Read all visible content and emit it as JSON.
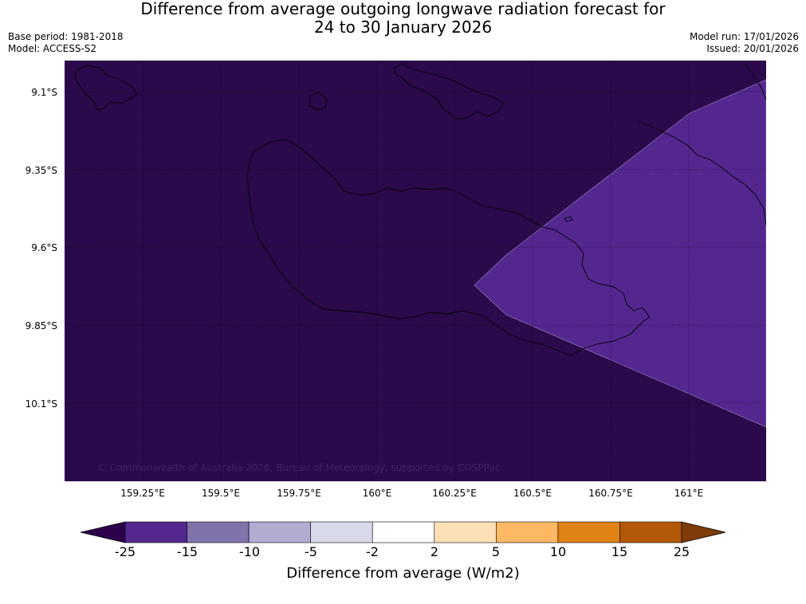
{
  "title": {
    "line1": "Difference from average outgoing longwave radiation forecast for",
    "line2": "24 to 30 January 2026"
  },
  "meta": {
    "base_period": "Base period: 1981-2018",
    "model": "Model: ACCESS-S2",
    "model_run": "Model run: 17/01/2026",
    "issued": "Issued: 20/01/2026"
  },
  "map": {
    "latitudes": [
      "9.1°S",
      "9.35°S",
      "9.6°S",
      "9.85°S",
      "10.1°S"
    ],
    "longitudes": [
      "159.25°E",
      "159.5°E",
      "159.75°E",
      "160°E",
      "160.25°E",
      "160.5°E",
      "160.75°E",
      "161°E"
    ],
    "copyright": "© Commonwealth of Australia 2026, Bureau of Meteorology, supported by COSPPac",
    "colors": {
      "background_anomaly": "#2a0a4a",
      "region_anomaly": "#54278f",
      "coastline": "#000000",
      "gridline": "#000000"
    }
  },
  "colorbar": {
    "label": "Difference from average (W/m2)",
    "ticks": [
      "-25",
      "-15",
      "-10",
      "-5",
      "-2",
      "2",
      "5",
      "10",
      "15",
      "25"
    ],
    "colors": [
      "#54278f",
      "#8073ac",
      "#b2abd2",
      "#d8daeb",
      "#ffffff",
      "#fee0b6",
      "#fdb863",
      "#e08214",
      "#b35806"
    ],
    "extend_low_color": "#2d004b",
    "extend_high_color": "#7f3b08"
  }
}
